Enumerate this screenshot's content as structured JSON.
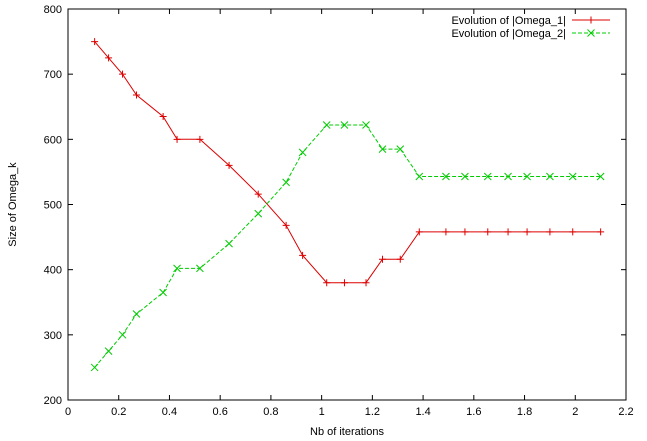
{
  "chart_data": {
    "type": "line",
    "xlabel": "Nb of iterations",
    "ylabel": "Size of Omega_k",
    "xlim": [
      0,
      2.2
    ],
    "ylim": [
      200,
      800
    ],
    "xticks": [
      0,
      0.2,
      0.4,
      0.6,
      0.8,
      1,
      1.2,
      1.4,
      1.6,
      1.8,
      2,
      2.2
    ],
    "xtick_labels": [
      "0",
      "0.2",
      "0.4",
      "0.6",
      "0.8",
      "1",
      "1.2",
      "1.4",
      "1.6",
      "1.8",
      "2",
      "2.2"
    ],
    "yticks": [
      200,
      300,
      400,
      500,
      600,
      700,
      800
    ],
    "ytick_labels": [
      "200",
      "300",
      "400",
      "500",
      "600",
      "700",
      "800"
    ],
    "grid": false,
    "legend_position": "top-right",
    "series": [
      {
        "name": "Evolution of |Omega_1|",
        "color": "#dd0000",
        "line_style": "solid",
        "marker": "plus",
        "x": [
          0.105,
          0.16,
          0.215,
          0.27,
          0.375,
          0.43,
          0.52,
          0.635,
          0.75,
          0.86,
          0.925,
          1.02,
          1.09,
          1.175,
          1.24,
          1.31,
          1.385,
          1.49,
          1.565,
          1.655,
          1.735,
          1.81,
          1.9,
          1.99,
          2.1
        ],
        "y": [
          750,
          725,
          700,
          668,
          635,
          600,
          600,
          560,
          516,
          468,
          422,
          380,
          380,
          380,
          416,
          416,
          458,
          458,
          458,
          458,
          458,
          458,
          458,
          458,
          458
        ]
      },
      {
        "name": "Evolution of |Omega_2|",
        "color": "#00cc00",
        "line_style": "dashed",
        "marker": "x",
        "x": [
          0.105,
          0.16,
          0.215,
          0.27,
          0.375,
          0.43,
          0.52,
          0.635,
          0.75,
          0.86,
          0.925,
          1.02,
          1.09,
          1.175,
          1.24,
          1.31,
          1.385,
          1.49,
          1.565,
          1.655,
          1.735,
          1.81,
          1.9,
          1.99,
          2.1
        ],
        "y": [
          250,
          275,
          300,
          332,
          365,
          402,
          402,
          440,
          486,
          534,
          580,
          622,
          622,
          622,
          585,
          585,
          543,
          543,
          543,
          543,
          543,
          543,
          543,
          543,
          543
        ]
      }
    ]
  }
}
